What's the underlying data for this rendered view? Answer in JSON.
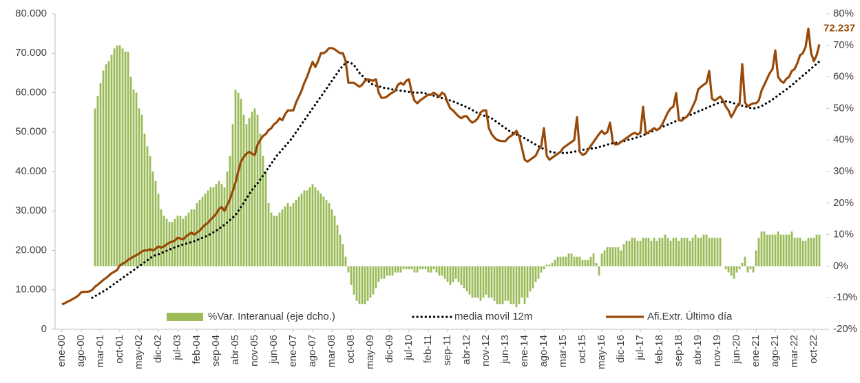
{
  "chart_data": {
    "type": "combo",
    "categories": [
      "ene-00",
      null,
      null,
      null,
      null,
      null,
      null,
      "ago-00",
      null,
      null,
      null,
      null,
      null,
      null,
      "mar-01",
      null,
      null,
      null,
      null,
      null,
      null,
      "oct-01",
      null,
      null,
      null,
      null,
      null,
      null,
      "may-02",
      null,
      null,
      null,
      null,
      null,
      null,
      "dic-02",
      null,
      null,
      null,
      null,
      null,
      null,
      "jul-03",
      null,
      null,
      null,
      null,
      null,
      null,
      "feb-04",
      null,
      null,
      null,
      null,
      null,
      null,
      "sep-04",
      null,
      null,
      null,
      null,
      null,
      null,
      "abr-05",
      null,
      null,
      null,
      null,
      null,
      null,
      "nov-05",
      null,
      null,
      null,
      null,
      null,
      null,
      "jun-06",
      null,
      null,
      null,
      null,
      null,
      null,
      "ene-07",
      null,
      null,
      null,
      null,
      null,
      null,
      "ago-07",
      null,
      null,
      null,
      null,
      null,
      null,
      "mar-08",
      null,
      null,
      null,
      null,
      null,
      null,
      "oct-08",
      null,
      null,
      null,
      null,
      null,
      null,
      "may-09",
      null,
      null,
      null,
      null,
      null,
      null,
      "dic-09",
      null,
      null,
      null,
      null,
      null,
      null,
      "jul-10",
      null,
      null,
      null,
      null,
      null,
      null,
      "feb-11",
      null,
      null,
      null,
      null,
      null,
      null,
      "sep-11",
      null,
      null,
      null,
      null,
      null,
      null,
      "abr-12",
      null,
      null,
      null,
      null,
      null,
      null,
      "nov-12",
      null,
      null,
      null,
      null,
      null,
      null,
      "jun-13",
      null,
      null,
      null,
      null,
      null,
      null,
      "ene-14",
      null,
      null,
      null,
      null,
      null,
      null,
      "ago-14",
      null,
      null,
      null,
      null,
      null,
      null,
      "mar-15",
      null,
      null,
      null,
      null,
      null,
      null,
      "oct-15",
      null,
      null,
      null,
      null,
      null,
      null,
      "may-16",
      null,
      null,
      null,
      null,
      null,
      null,
      "dic-16",
      null,
      null,
      null,
      null,
      null,
      null,
      "jul-17",
      null,
      null,
      null,
      null,
      null,
      null,
      "feb-18",
      null,
      null,
      null,
      null,
      null,
      null,
      "sep-18",
      null,
      null,
      null,
      null,
      null,
      null,
      "abr-19",
      null,
      null,
      null,
      null,
      null,
      null,
      "nov-19",
      null,
      null,
      null,
      null,
      null,
      null,
      "jun-20",
      null,
      null,
      null,
      null,
      null,
      null,
      "ene-21",
      null,
      null,
      null,
      null,
      null,
      null,
      "ago-21",
      null,
      null,
      null,
      null,
      null,
      null,
      "mar-22",
      null,
      null,
      null,
      null,
      null,
      null,
      "oct-22",
      null,
      null
    ],
    "series": [
      {
        "name": "%Var. Interanual (eje dcho.)",
        "kind": "bar",
        "axis": "y2",
        "color": "#9bbb59",
        "values": [
          null,
          null,
          null,
          null,
          null,
          null,
          null,
          null,
          null,
          null,
          null,
          null,
          50,
          54,
          58,
          62,
          64,
          65,
          67,
          69,
          70,
          70,
          69,
          68,
          68,
          60,
          56,
          55,
          50,
          48,
          42,
          38,
          35,
          30,
          27,
          23,
          18,
          16,
          15,
          14,
          14,
          15,
          16,
          16,
          15,
          16,
          17,
          18,
          18,
          20,
          21,
          22,
          23,
          24,
          25,
          25,
          26,
          27,
          26,
          25,
          30,
          35,
          45,
          56,
          55,
          53,
          48,
          45,
          47,
          49,
          50,
          48,
          42,
          35,
          30,
          20,
          17,
          16,
          16,
          17,
          18,
          19,
          20,
          19,
          20,
          21,
          22,
          23,
          24,
          24,
          25,
          26,
          25,
          24,
          23,
          22,
          21,
          20,
          18,
          16,
          13,
          10,
          7,
          3,
          -2,
          -6,
          -9,
          -11,
          -12,
          -12,
          -12,
          -11,
          -10,
          -9,
          -7,
          -5,
          -4,
          -4,
          -3,
          -3,
          -3,
          -2,
          -2,
          -2,
          -1,
          -1,
          -1,
          -1,
          -2,
          -2,
          -1,
          -1,
          -1,
          -2,
          -2,
          -1,
          -2,
          -3,
          -3,
          -4,
          -5,
          -6,
          -5,
          -4,
          -5,
          -6,
          -7,
          -8,
          -9,
          -10,
          -10,
          -10,
          -11,
          -10,
          -9,
          -10,
          -10,
          -11,
          -12,
          -12,
          -12,
          -11,
          -11,
          -12,
          -12,
          -13,
          -12,
          -10,
          -12,
          -10,
          -8,
          -7,
          -5,
          -4,
          -2,
          -1,
          0.5,
          0.5,
          1,
          2,
          3,
          3,
          3,
          3,
          4,
          4,
          3,
          3,
          3,
          2,
          2,
          2,
          3,
          4,
          1,
          -3,
          4,
          5,
          6,
          6,
          6,
          6,
          6,
          5,
          7,
          8,
          8,
          9,
          9,
          8,
          8,
          9,
          9,
          9,
          8,
          9,
          8,
          9,
          9,
          10,
          9,
          8,
          9,
          9,
          8,
          9,
          9,
          9,
          8,
          9,
          10,
          9,
          9,
          10,
          10,
          9,
          9,
          9,
          9,
          9,
          0,
          -1,
          -2,
          -3,
          -4,
          -2,
          -1,
          1,
          3,
          -2,
          -1,
          -2,
          5,
          9,
          11,
          11,
          10,
          10,
          10,
          10,
          11,
          10,
          10,
          10,
          10,
          11,
          9,
          9,
          9,
          8,
          8,
          9,
          9,
          9,
          10,
          10
        ]
      },
      {
        "name": "media movil 12m",
        "kind": "dotted",
        "color": "#000000",
        "values": [
          null,
          null,
          null,
          null,
          null,
          null,
          null,
          null,
          null,
          null,
          null,
          8000,
          8400,
          8800,
          9200,
          9600,
          10000,
          10500,
          11000,
          11500,
          12000,
          12500,
          13000,
          13500,
          14000,
          14500,
          15000,
          15500,
          16000,
          16500,
          17000,
          17500,
          18000,
          18500,
          18800,
          19000,
          19300,
          19600,
          19900,
          20200,
          20500,
          20800,
          21000,
          21300,
          21500,
          21700,
          21900,
          22100,
          22300,
          22600,
          22900,
          23200,
          23500,
          23800,
          24200,
          24600,
          25000,
          25500,
          26000,
          26500,
          27100,
          27700,
          28300,
          29000,
          30000,
          31000,
          32000,
          33200,
          34300,
          35300,
          36200,
          37000,
          38000,
          39000,
          40000,
          41000,
          42000,
          43000,
          44000,
          44800,
          45600,
          46400,
          47200,
          48000,
          49000,
          50000,
          51000,
          52000,
          53000,
          54000,
          55000,
          56000,
          57000,
          58000,
          59000,
          60000,
          61000,
          62000,
          63000,
          64000,
          65000,
          66000,
          66800,
          67500,
          67800,
          67500,
          67000,
          66000,
          65000,
          64300,
          63600,
          63000,
          62500,
          62000,
          61800,
          61600,
          61400,
          61200,
          61100,
          61000,
          60800,
          60700,
          60600,
          60500,
          60400,
          60300,
          60200,
          60100,
          60000,
          60000,
          60000,
          60000,
          59800,
          59600,
          59400,
          59200,
          59000,
          58800,
          58600,
          58400,
          58200,
          58000,
          57800,
          57500,
          57200,
          56900,
          56600,
          56300,
          56000,
          55600,
          55200,
          54800,
          54500,
          54200,
          54000,
          53800,
          53500,
          53000,
          52500,
          52000,
          51500,
          51000,
          50500,
          50000,
          49700,
          49400,
          49100,
          48800,
          48400,
          48000,
          47600,
          47200,
          46800,
          46400,
          46000,
          45700,
          45400,
          45100,
          44900,
          44800,
          44700,
          44700,
          44700,
          44700,
          44800,
          44900,
          45000,
          45200,
          45400,
          45500,
          45600,
          45700,
          45800,
          45900,
          46000,
          46200,
          46400,
          46600,
          46800,
          47000,
          47200,
          47300,
          47400,
          47500,
          47700,
          47900,
          48100,
          48300,
          48500,
          48700,
          48900,
          49200,
          49500,
          49800,
          50100,
          50400,
          50700,
          51000,
          51300,
          51600,
          51900,
          52200,
          52500,
          52800,
          53100,
          53400,
          53700,
          54000,
          54300,
          54600,
          54900,
          55200,
          55500,
          55800,
          56100,
          56400,
          56700,
          57000,
          57300,
          57500,
          57700,
          57800,
          57700,
          57500,
          57300,
          57100,
          56900,
          56700,
          56500,
          56300,
          56100,
          56000,
          56100,
          56300,
          56600,
          57000,
          57400,
          57800,
          58300,
          58800,
          59300,
          59800,
          60300,
          60800,
          61300,
          61900,
          62500,
          63100,
          63700,
          64300,
          64900,
          65500,
          66100,
          66700,
          67300,
          67900
        ]
      },
      {
        "name": "Afi.Extr. Último día",
        "kind": "line",
        "color": "#984807",
        "values": [
          6300,
          6600,
          7000,
          7300,
          7700,
          8100,
          8600,
          9400,
          9500,
          9500,
          9600,
          10000,
          10800,
          11300,
          11900,
          12500,
          13000,
          13600,
          14200,
          14600,
          15000,
          16200,
          16600,
          17000,
          17600,
          18000,
          18400,
          18800,
          19200,
          19700,
          20000,
          20000,
          20300,
          20000,
          20400,
          21000,
          20700,
          21000,
          21500,
          22000,
          22200,
          22500,
          23200,
          23000,
          22800,
          23500,
          24000,
          24500,
          24000,
          24500,
          25000,
          25800,
          26500,
          27000,
          27800,
          28500,
          29300,
          30500,
          31000,
          30000,
          31500,
          33000,
          35000,
          37200,
          40000,
          42500,
          43700,
          44500,
          45000,
          44500,
          44200,
          46800,
          48000,
          49000,
          49500,
          50500,
          51000,
          52000,
          52500,
          53500,
          53000,
          54500,
          55500,
          55500,
          55500,
          57500,
          59000,
          60500,
          62500,
          64000,
          66000,
          67800,
          66500,
          68000,
          70000,
          70000,
          70500,
          71300,
          71300,
          71000,
          70500,
          70000,
          70000,
          68000,
          62500,
          62500,
          62500,
          62000,
          61500,
          62000,
          63000,
          63400,
          63200,
          63000,
          63400,
          60000,
          58700,
          58700,
          59000,
          59600,
          60000,
          60500,
          62000,
          62500,
          62000,
          63000,
          63400,
          60000,
          58000,
          57300,
          58000,
          58500,
          59000,
          59500,
          59500,
          60000,
          59500,
          59000,
          60000,
          59500,
          57500,
          56000,
          55500,
          54700,
          54000,
          53500,
          54000,
          54000,
          53000,
          52400,
          52800,
          53500,
          55000,
          55500,
          55500,
          51000,
          49500,
          48600,
          48000,
          47800,
          47700,
          47700,
          48500,
          49000,
          49500,
          50300,
          49000,
          46000,
          43000,
          42500,
          43000,
          43500,
          44000,
          45500,
          46500,
          51000,
          44000,
          43000,
          43500,
          44000,
          44500,
          45000,
          46000,
          46500,
          47000,
          47500,
          48000,
          53800,
          45000,
          44200,
          44500,
          45500,
          46500,
          47500,
          48500,
          49500,
          50300,
          49500,
          50000,
          52400,
          47500,
          46800,
          47000,
          47500,
          48000,
          48500,
          49000,
          49500,
          49800,
          49400,
          49800,
          56400,
          49500,
          50000,
          50500,
          51000,
          50500,
          51000,
          52000,
          53500,
          55000,
          56000,
          56500,
          59900,
          53000,
          52900,
          53500,
          54000,
          55000,
          56500,
          58000,
          60800,
          61500,
          62000,
          62500,
          65500,
          58500,
          58000,
          58500,
          59000,
          58000,
          56500,
          55500,
          53800,
          55000,
          56500,
          57000,
          67200,
          57500,
          56500,
          57000,
          57300,
          57300,
          58000,
          60500,
          62000,
          63500,
          65000,
          66000,
          70700,
          64000,
          63000,
          62500,
          63500,
          64000,
          65500,
          66000,
          67500,
          69500,
          70000,
          71600,
          76200,
          70000,
          68000,
          69500,
          72237
        ],
        "end_label": {
          "index": 275,
          "label": "72.237"
        }
      }
    ],
    "ylim": [
      0,
      80000
    ],
    "yticks": [
      {
        "value": 0,
        "label": "0"
      },
      {
        "value": 10000,
        "label": "10.000"
      },
      {
        "value": 20000,
        "label": "20.000"
      },
      {
        "value": 30000,
        "label": "30.000"
      },
      {
        "value": 40000,
        "label": "40.000"
      },
      {
        "value": 50000,
        "label": "50.000"
      },
      {
        "value": 60000,
        "label": "60.000"
      },
      {
        "value": 70000,
        "label": "70.000"
      },
      {
        "value": 80000,
        "label": "80.000"
      }
    ],
    "y2lim": [
      -20,
      80
    ],
    "y2ticks": [
      {
        "value": -20,
        "label": "-20%"
      },
      {
        "value": -10,
        "label": "-10%"
      },
      {
        "value": 0,
        "label": "0%"
      },
      {
        "value": 10,
        "label": "10%"
      },
      {
        "value": 20,
        "label": "20%"
      },
      {
        "value": 30,
        "label": "30%"
      },
      {
        "value": 40,
        "label": "40%"
      },
      {
        "value": 50,
        "label": "50%"
      },
      {
        "value": 60,
        "label": "60%"
      },
      {
        "value": 70,
        "label": "70%"
      },
      {
        "value": 80,
        "label": "80%"
      }
    ],
    "grid": false,
    "legend": "bottom"
  }
}
